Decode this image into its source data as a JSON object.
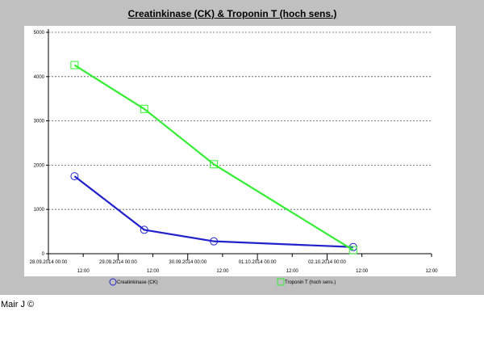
{
  "footer": "Mair J ©",
  "chart_data": {
    "type": "line",
    "title": "Creatinkinase (CK) & Troponin T (hoch sens.)",
    "xlabel": "",
    "ylabel": "",
    "x_range": [
      "2014-09-28T00:00",
      "2014-10-03T12:00"
    ],
    "ylim": [
      0,
      5000
    ],
    "y_ticks": [
      0,
      1000,
      2000,
      3000,
      4000,
      5000
    ],
    "x_major_tick_labels": [
      "28.09.2014 00:00",
      "29.09.2014 00:00",
      "30.09.2014 00:00",
      "01.10.2014 00:00",
      "02.10.2014 00:00"
    ],
    "x_minor_tick_labels": [
      "12:00",
      "12:00",
      "12:00",
      "12:00",
      "12:00"
    ],
    "grid": "horizontal dashed",
    "legend_position": "bottom",
    "series": [
      {
        "name": "Creatinkinase (CK)",
        "color": "#2222cc",
        "marker": "circle",
        "x": [
          "2014-09-28T09:00",
          "2014-09-29T09:00",
          "2014-09-30T09:00",
          "2014-10-02T09:00"
        ],
        "values": [
          1750,
          540,
          280,
          150
        ]
      },
      {
        "name": "Troponin T (hoch sens.)",
        "color": "#33ee33",
        "marker": "square",
        "x": [
          "2014-09-28T09:00",
          "2014-09-29T09:00",
          "2014-09-30T09:00",
          "2014-10-02T09:00"
        ],
        "values": [
          4260,
          3270,
          2020,
          80
        ]
      }
    ]
  }
}
